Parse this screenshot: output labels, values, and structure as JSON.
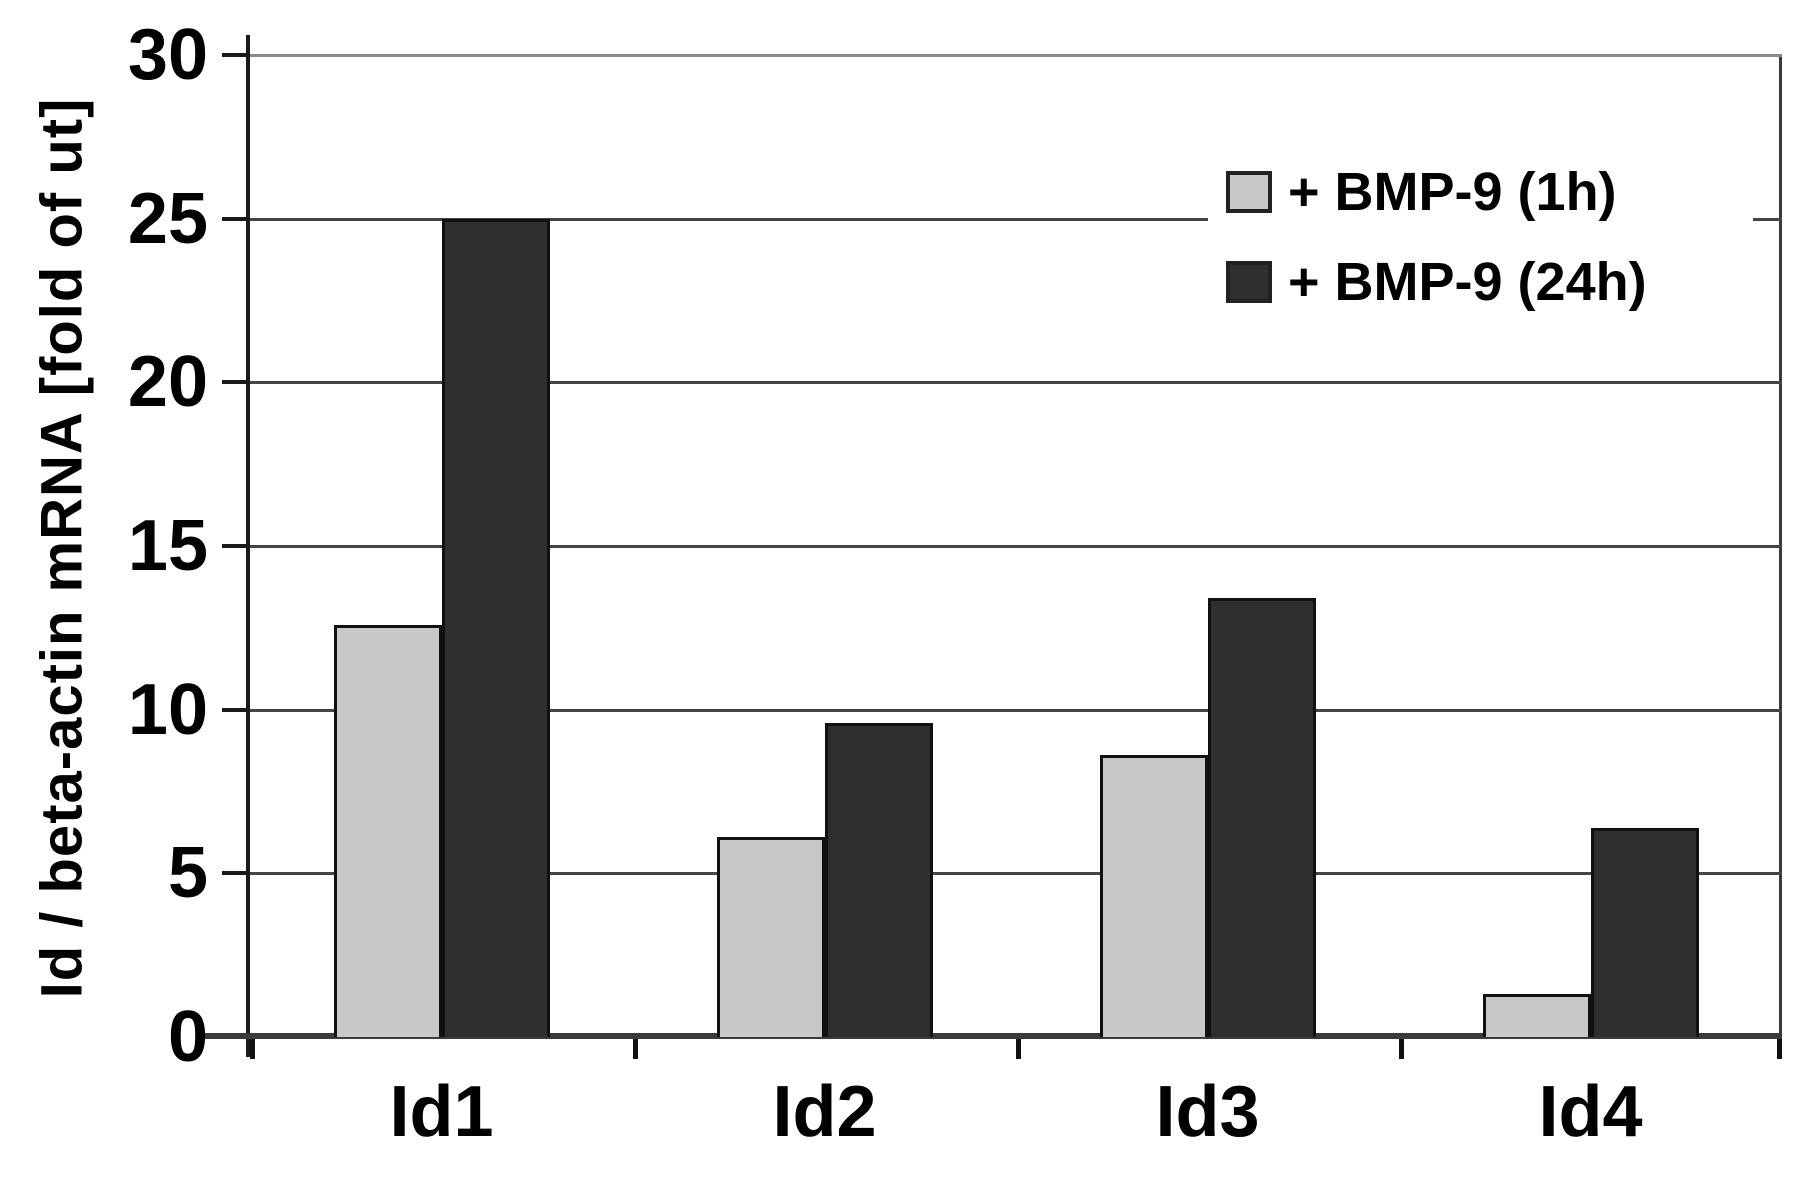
{
  "chart_data": {
    "type": "bar",
    "title": "",
    "xlabel": "",
    "ylabel": "Id / beta-actin mRNA [fold of ut]",
    "categories": [
      "Id1",
      "Id2",
      "Id3",
      "Id4"
    ],
    "series": [
      {
        "name": "+ BMP-9 (1h)",
        "color": "#c8c8c8",
        "values": [
          12.6,
          6.1,
          8.6,
          1.3
        ]
      },
      {
        "name": "+ BMP-9 (24h)",
        "color": "#2f2f2f",
        "values": [
          25.0,
          9.6,
          13.4,
          6.4
        ]
      }
    ],
    "ylim": [
      0,
      30
    ],
    "yticks": [
      0,
      5,
      10,
      15,
      20,
      25,
      30
    ],
    "grid": true,
    "legend_position": "upper-right",
    "colors": {
      "background": "#ffffff",
      "gridline": "#454545",
      "top_gridline": "#8a8a8a",
      "axis": "#1a1a1a",
      "baseline": "#3a3a3a",
      "bar_border": "#111111",
      "text": "#000000"
    }
  }
}
